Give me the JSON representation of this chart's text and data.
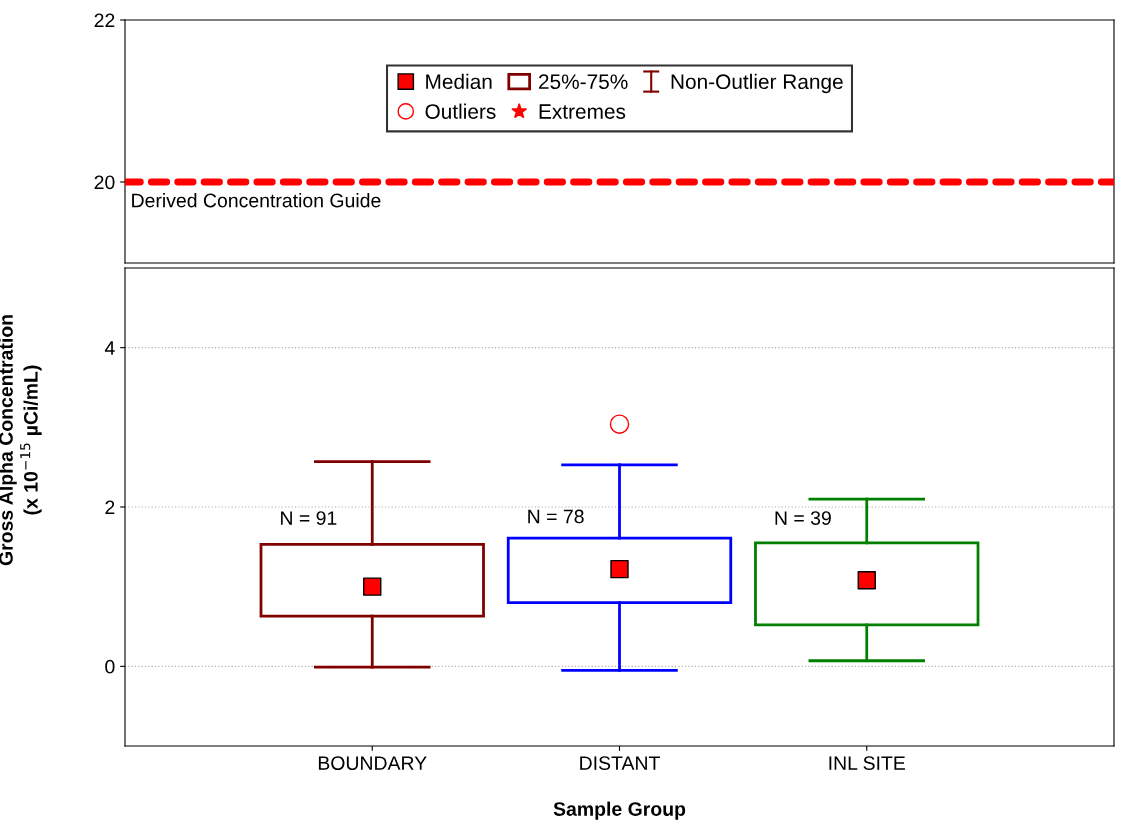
{
  "chart_data": [
    {
      "type": "box",
      "categories": [
        null,
        null,
        null
      ],
      "ylim": [
        19,
        22
      ],
      "yticks": [
        20,
        22
      ],
      "ref_lines": [
        {
          "axis": "y",
          "value": 20,
          "label": "Derived Concentration Guide",
          "color": "#ff0000",
          "line_style": "dashed"
        }
      ]
    },
    {
      "type": "box",
      "categories": [
        "BOUNDARY",
        "DISTANT",
        "INL SITE"
      ],
      "ylim": [
        -1,
        5
      ],
      "yticks": [
        0,
        2,
        4
      ],
      "grid": "y",
      "legend": "top",
      "xlabel": "Sample Group",
      "ylabel": "Gross Alpha Concentration\n(x 10$^{−15}$ µCi/mL)",
      "series": [
        {
          "name": "Median",
          "type": "scatter",
          "marker": "square",
          "color": "#ff0000",
          "values": [
            null,
            null,
            null
          ]
        },
        {
          "name": "25%-75%",
          "type": "box",
          "colors": [
            "#800000",
            "#0000ff",
            "#008000"
          ],
          "boxes": [
            {
              "low": -0.01,
              "q1": 0.63,
              "median": 1.0,
              "q3": 1.53,
              "high": 2.57
            },
            {
              "low": -0.05,
              "q1": 0.8,
              "median": 1.22,
              "q3": 1.61,
              "high": 2.53
            },
            {
              "low": 0.07,
              "q1": 0.52,
              "median": 1.08,
              "q3": 1.55,
              "high": 2.1
            }
          ]
        },
        {
          "name": "Non-Outlier Range",
          "type": "box",
          "color": "#800000",
          "values": [
            null,
            null,
            null
          ]
        },
        {
          "name": "Outliers",
          "type": "scatter",
          "marker": "circle",
          "color": "#ff0000",
          "values": [
            null,
            3.04,
            null
          ]
        },
        {
          "name": "Extremes",
          "type": "scatter",
          "marker": "star",
          "color": "#ff0000",
          "values": [
            null,
            null,
            null
          ]
        }
      ],
      "annotations": [
        {
          "text": "N = 91",
          "x": "BOUNDARY",
          "y": 1.84
        },
        {
          "text": "N = 78",
          "x": "DISTANT",
          "y": 1.86
        },
        {
          "text": "N = 39",
          "x": "INL SITE",
          "y": 1.84
        }
      ]
    }
  ]
}
